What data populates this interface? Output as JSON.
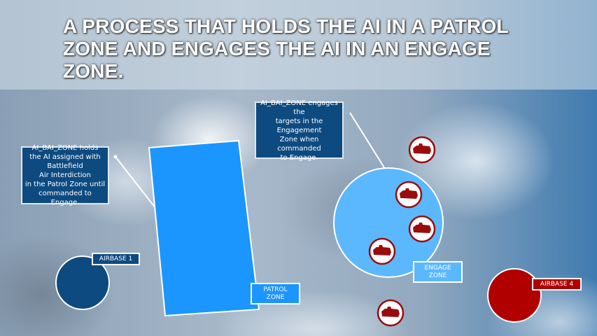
{
  "title": "A PROCESS THAT HOLDS THE AI IN A PATROL ZONE AND ENGAGES THE AI IN AN ENGAGE ZONE.",
  "notes": {
    "patrol": "AI_BAI_ZONE holds\nthe AI assigned with\nBattlefield\nAir Interdiction\nin the Patrol Zone until\ncommanded to Engage.",
    "engage": "AI_BAI_ZONE engages the\ntargets in the Engagement\nZone when commanded\nto Engage."
  },
  "labels": {
    "airbase1": "AIRBASE 1",
    "patrol_zone": "PATROL\nZONE",
    "engage_zone": "ENGAGE\nZONE",
    "airbase4": "AIRBASE 4"
  },
  "colors": {
    "patrol": "#1b96ff",
    "engage": "#5bb8ff",
    "blue_base": "#0d4a80",
    "red_base": "#b00000",
    "target": "#9a0c0c"
  },
  "targets": [
    {
      "icon": "tank-icon"
    },
    {
      "icon": "tank-icon"
    },
    {
      "icon": "tank-icon"
    },
    {
      "icon": "tank-icon"
    },
    {
      "icon": "tank-icon"
    }
  ]
}
